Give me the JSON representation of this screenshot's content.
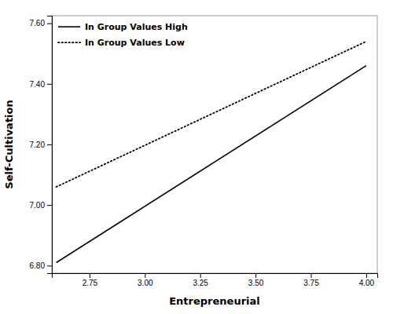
{
  "chart_data": {
    "type": "line",
    "xlabel": "Entrepreneurial",
    "ylabel": "Self-Cultivation",
    "x": [
      2.6,
      4.0
    ],
    "series": [
      {
        "name": "In Group Values High",
        "color": "#000000",
        "line_style": "solid",
        "values": [
          6.81,
          7.46
        ]
      },
      {
        "name": "In Group Values Low",
        "color": "#000000",
        "line_style": "dotted",
        "values": [
          7.06,
          7.54
        ]
      }
    ],
    "xlim": [
      2.58,
      4.05
    ],
    "ylim": [
      6.775,
      7.625
    ],
    "xticks": [
      2.75,
      {
        "value": 3,
        "label": "3.00"
      },
      3.25,
      {
        "value": 3.5,
        "label": "3.50"
      },
      3.75,
      {
        "value": 4,
        "label": "4.00"
      }
    ],
    "yticks": [
      {
        "value": 6.8,
        "label": "6.80"
      },
      {
        "value": 7,
        "label": "7.00"
      },
      {
        "value": 7.2,
        "label": "7.20"
      },
      {
        "value": 7.4,
        "label": "7.40"
      },
      {
        "value": 7.6,
        "label": "7.60"
      }
    ],
    "legend": "upper left",
    "grid": false
  }
}
